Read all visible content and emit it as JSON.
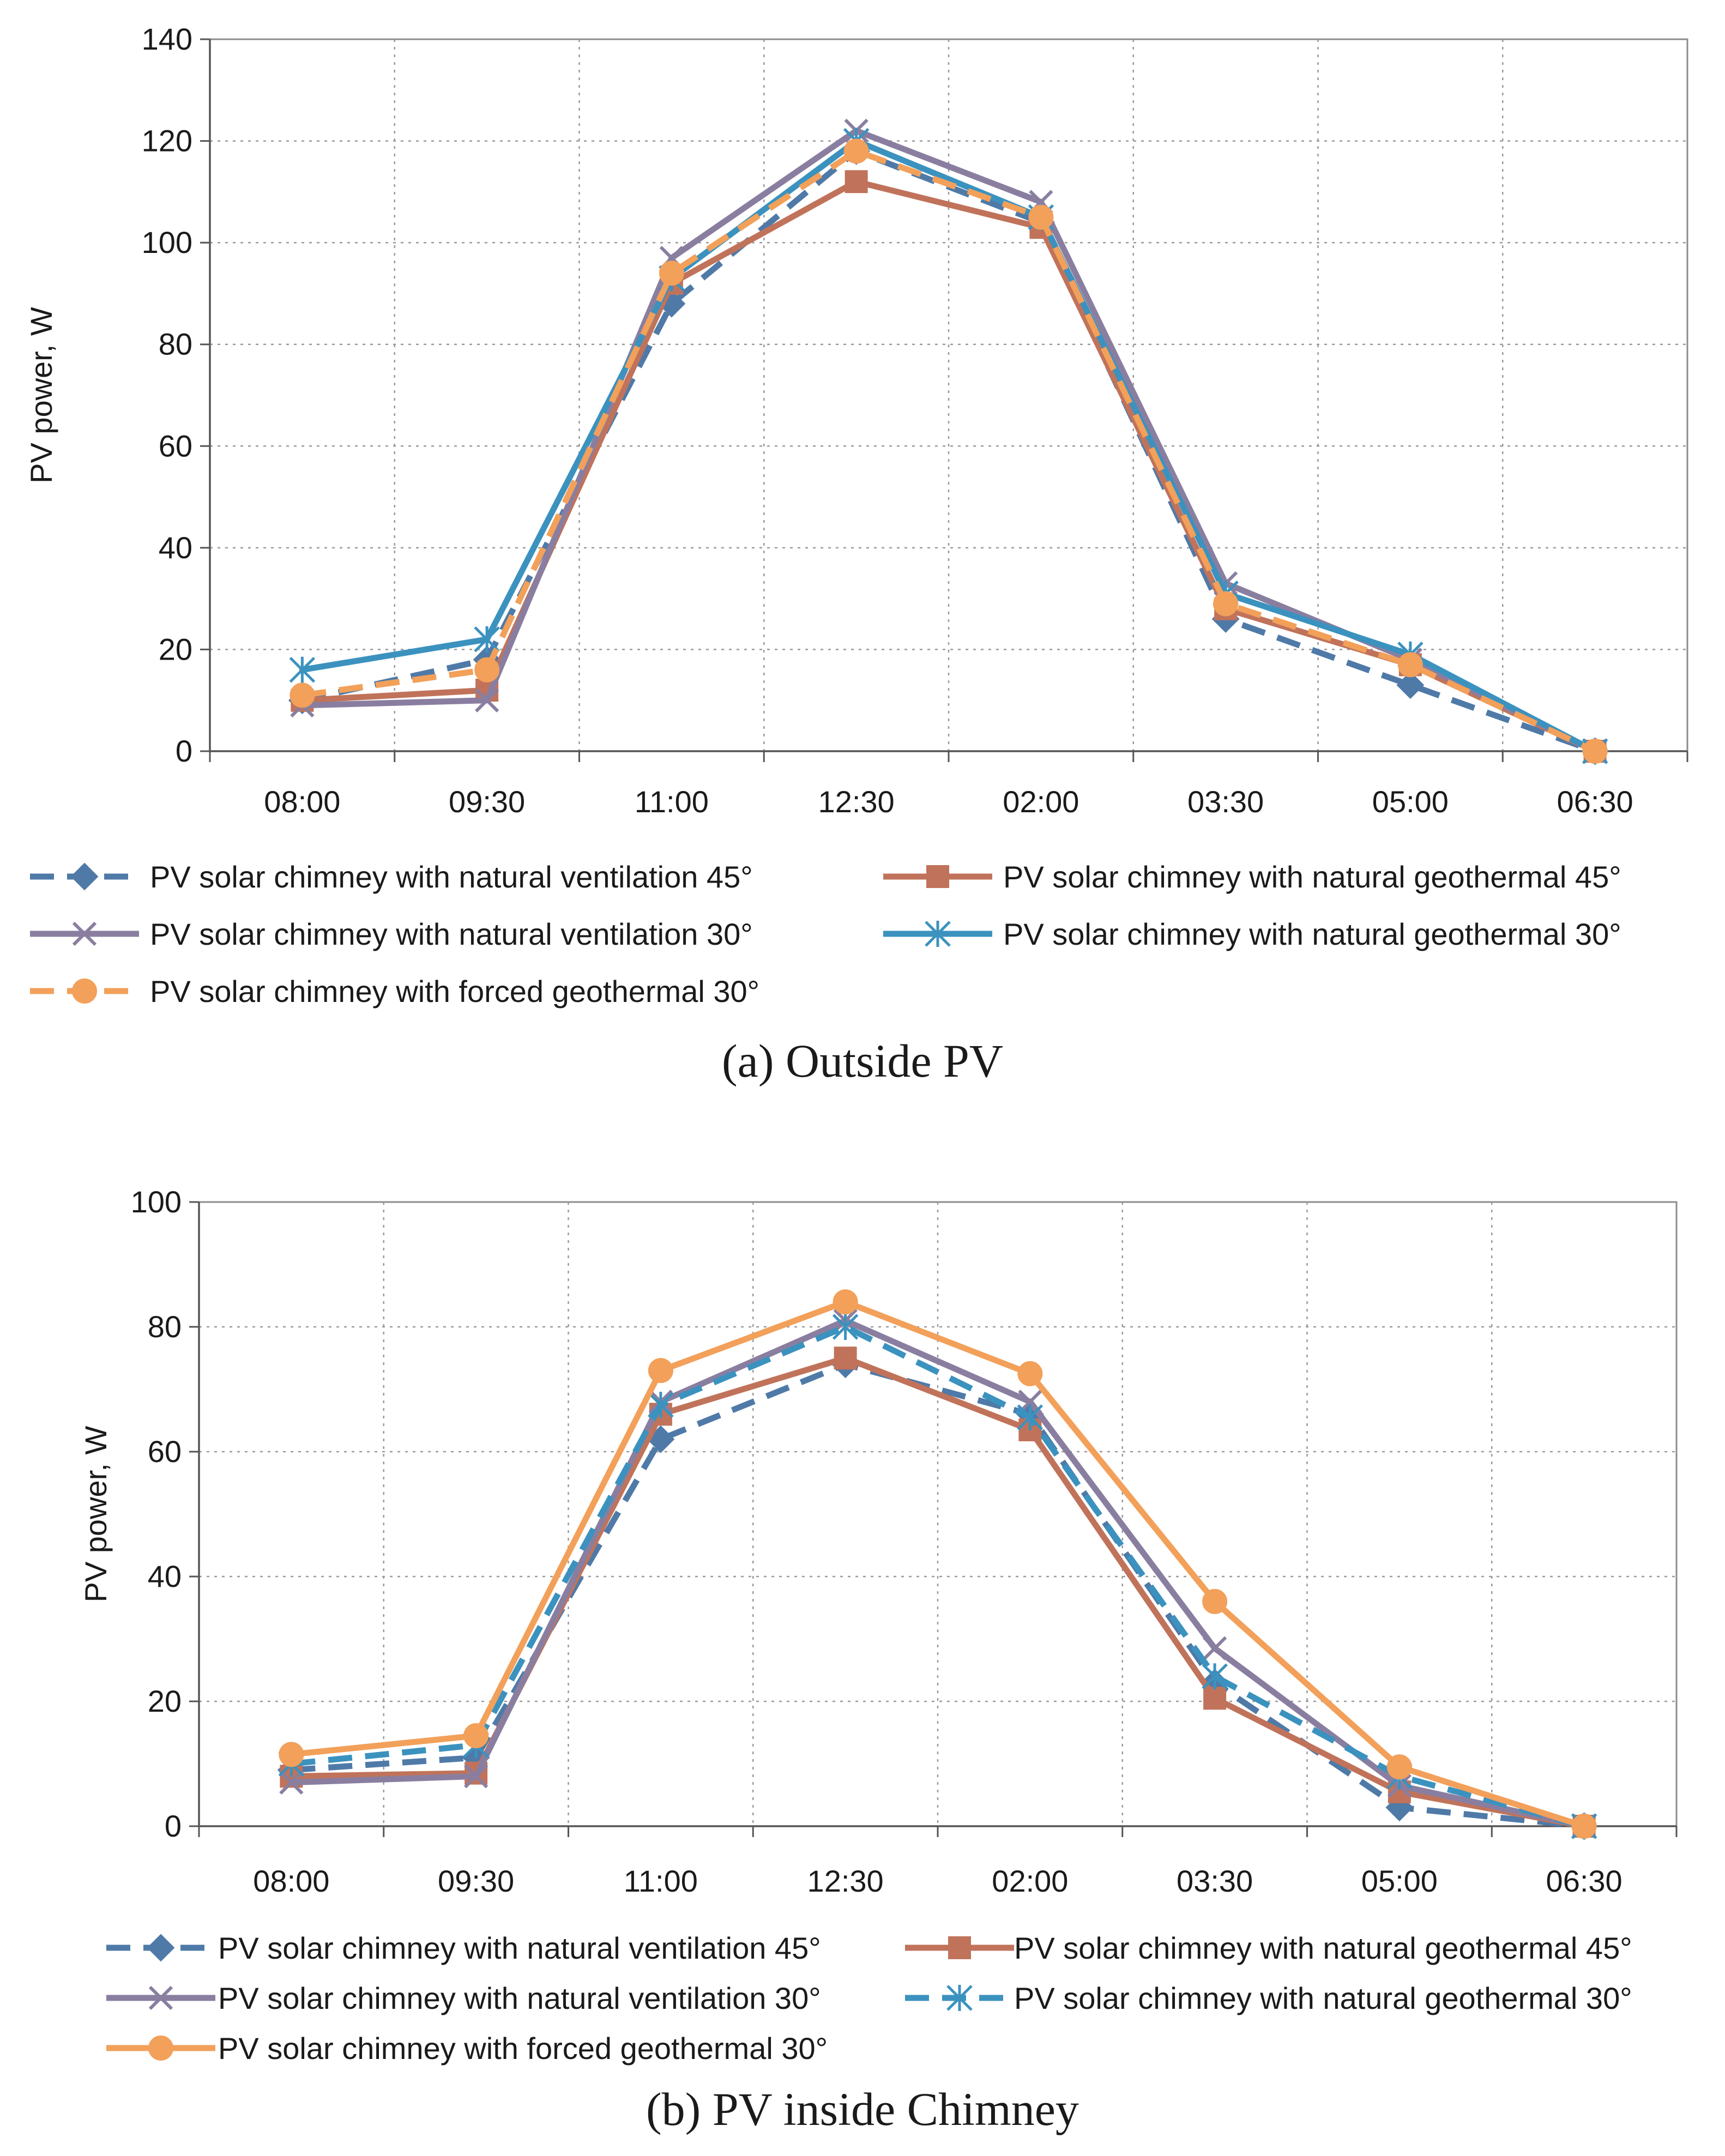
{
  "chart_data": [
    {
      "type": "line",
      "title": "",
      "caption": "(a) Outside PV",
      "xlabel": "",
      "ylabel": "PV power, W",
      "ylim": [
        0,
        140
      ],
      "ystep": 20,
      "yticks": [
        "0",
        "20",
        "40",
        "60",
        "80",
        "100",
        "120",
        "140"
      ],
      "grid": true,
      "categories": [
        "08:00",
        "09:30",
        "11:00",
        "12:30",
        "02:00",
        "03:30",
        "05:00",
        "06:30"
      ],
      "series": [
        {
          "name": "PV solar chimney with natural ventilation 45°",
          "color": "#4f7aa8",
          "dash": true,
          "marker": "diamond",
          "values": [
            10,
            18,
            88,
            118,
            104,
            26,
            13,
            0
          ]
        },
        {
          "name": "PV solar chimney with natural geothermal 45°",
          "color": "#c0735a",
          "dash": false,
          "marker": "square",
          "values": [
            10,
            12,
            92,
            112,
            103,
            28,
            17,
            0
          ]
        },
        {
          "name": "PV solar chimney with natural ventilation 30°",
          "color": "#8a7ea0",
          "dash": false,
          "marker": "x",
          "values": [
            9,
            10,
            97,
            122,
            108,
            33,
            18,
            0
          ]
        },
        {
          "name": "PV solar chimney with natural geothermal 30°",
          "color": "#3b92bf",
          "dash": false,
          "marker": "star",
          "values": [
            16,
            22,
            93,
            120,
            105,
            31,
            19,
            0
          ]
        },
        {
          "name": "PV solar chimney with forced geothermal 30°",
          "color": "#f2a05a",
          "dash": true,
          "marker": "circle",
          "values": [
            11,
            16,
            94,
            118,
            105,
            29,
            17,
            0
          ]
        }
      ]
    },
    {
      "type": "line",
      "title": "",
      "caption": "(b) PV inside Chimney",
      "xlabel": "",
      "ylabel": "PV power, W",
      "ylim": [
        0,
        100
      ],
      "ystep": 20,
      "yticks": [
        "0",
        "20",
        "40",
        "60",
        "80",
        "100"
      ],
      "grid": true,
      "categories": [
        "08:00",
        "09:30",
        "11:00",
        "12:30",
        "02:00",
        "03:30",
        "05:00",
        "06:30"
      ],
      "series": [
        {
          "name": "PV solar chimney with natural ventilation 45°",
          "color": "#4f7aa8",
          "dash": true,
          "marker": "diamond",
          "values": [
            9,
            11,
            62,
            74,
            66,
            23,
            3,
            0
          ]
        },
        {
          "name": "PV solar chimney with natural geothermal 45°",
          "color": "#c0735a",
          "dash": false,
          "marker": "square",
          "values": [
            8,
            8.5,
            66,
            75,
            63.5,
            20.5,
            5.5,
            0
          ]
        },
        {
          "name": "PV solar chimney with natural ventilation 30°",
          "color": "#8a7ea0",
          "dash": false,
          "marker": "x",
          "values": [
            7,
            8,
            68,
            81,
            68,
            28.5,
            6.5,
            0
          ]
        },
        {
          "name": "PV solar chimney with natural geothermal 30°",
          "color": "#3b92bf",
          "dash": true,
          "marker": "star",
          "values": [
            10,
            13,
            67.5,
            80,
            65.5,
            24,
            8,
            0
          ]
        },
        {
          "name": "PV solar chimney with forced geothermal 30°",
          "color": "#f2a05a",
          "dash": false,
          "marker": "circle",
          "values": [
            11.5,
            14.5,
            73,
            84,
            72.5,
            36,
            9.5,
            0
          ]
        }
      ]
    }
  ]
}
